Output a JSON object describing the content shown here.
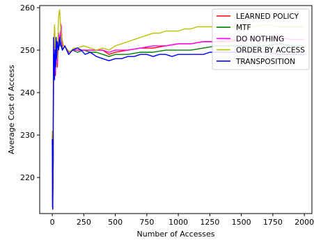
{
  "chart_data": {
    "type": "line",
    "title": "",
    "xlabel": "Number of Accesses",
    "ylabel": "Average Cost of Access",
    "xlim": [
      -100,
      2060
    ],
    "ylim": [
      211.5,
      260.5
    ],
    "x_ticks": [
      0,
      250,
      500,
      750,
      1000,
      1250,
      1500,
      1750,
      2000
    ],
    "y_ticks": [
      220,
      230,
      240,
      250,
      260
    ],
    "grid": false,
    "legend_position": "top-right",
    "series": [
      {
        "name": "LEARNED POLICY",
        "color": "#ff0000",
        "points": [
          [
            0,
            230
          ],
          [
            3,
            213
          ],
          [
            8,
            225
          ],
          [
            12,
            248
          ],
          [
            18,
            255
          ],
          [
            25,
            244
          ],
          [
            32,
            252
          ],
          [
            40,
            246
          ],
          [
            50,
            254
          ],
          [
            60,
            252
          ],
          [
            70,
            256
          ],
          [
            80,
            250
          ],
          [
            100,
            251
          ],
          [
            130,
            249
          ],
          [
            160,
            250
          ],
          [
            200,
            250
          ],
          [
            250,
            250
          ],
          [
            300,
            250
          ],
          [
            350,
            250
          ],
          [
            400,
            250
          ],
          [
            450,
            249
          ],
          [
            500,
            249.5
          ],
          [
            600,
            250
          ],
          [
            700,
            250.5
          ],
          [
            800,
            250.5
          ],
          [
            900,
            251
          ],
          [
            1000,
            251.5
          ],
          [
            1100,
            251.5
          ],
          [
            1200,
            252
          ],
          [
            1300,
            252
          ],
          [
            1400,
            252
          ],
          [
            1500,
            252.5
          ],
          [
            1600,
            252.5
          ],
          [
            1700,
            252.5
          ],
          [
            1800,
            253
          ],
          [
            1900,
            252.5
          ],
          [
            2000,
            252.5
          ]
        ]
      },
      {
        "name": "MTF",
        "color": "#008000",
        "points": [
          [
            0,
            230
          ],
          [
            3,
            214
          ],
          [
            8,
            224
          ],
          [
            12,
            249
          ],
          [
            18,
            254
          ],
          [
            25,
            245
          ],
          [
            32,
            251
          ],
          [
            40,
            247
          ],
          [
            50,
            253
          ],
          [
            60,
            251
          ],
          [
            70,
            255
          ],
          [
            80,
            250
          ],
          [
            100,
            251
          ],
          [
            130,
            249
          ],
          [
            160,
            250
          ],
          [
            200,
            249.5
          ],
          [
            250,
            250
          ],
          [
            300,
            249.5
          ],
          [
            350,
            249.5
          ],
          [
            400,
            249
          ],
          [
            450,
            248.5
          ],
          [
            500,
            249
          ],
          [
            600,
            249
          ],
          [
            700,
            249.5
          ],
          [
            800,
            249.5
          ],
          [
            900,
            250
          ],
          [
            1000,
            250
          ],
          [
            1100,
            250
          ],
          [
            1200,
            250.5
          ],
          [
            1300,
            251
          ],
          [
            1400,
            251
          ],
          [
            1500,
            251
          ],
          [
            1600,
            251
          ],
          [
            1700,
            251
          ],
          [
            1800,
            251.5
          ],
          [
            1900,
            251
          ],
          [
            2000,
            251
          ]
        ]
      },
      {
        "name": "DO NOTHING",
        "color": "#ff00ff",
        "points": [
          [
            0,
            230
          ],
          [
            3,
            213
          ],
          [
            8,
            226
          ],
          [
            12,
            249
          ],
          [
            18,
            255
          ],
          [
            25,
            245
          ],
          [
            32,
            252
          ],
          [
            40,
            247
          ],
          [
            50,
            254
          ],
          [
            60,
            252
          ],
          [
            70,
            256
          ],
          [
            80,
            251
          ],
          [
            100,
            251
          ],
          [
            130,
            249.5
          ],
          [
            160,
            250
          ],
          [
            200,
            250
          ],
          [
            250,
            250
          ],
          [
            300,
            250
          ],
          [
            350,
            250
          ],
          [
            400,
            250
          ],
          [
            450,
            249.5
          ],
          [
            500,
            250
          ],
          [
            600,
            250
          ],
          [
            700,
            250.5
          ],
          [
            800,
            251
          ],
          [
            900,
            251
          ],
          [
            1000,
            251.5
          ],
          [
            1100,
            251.5
          ],
          [
            1200,
            252
          ],
          [
            1300,
            252
          ],
          [
            1400,
            252.5
          ],
          [
            1500,
            252.5
          ],
          [
            1600,
            252.5
          ],
          [
            1700,
            252.5
          ],
          [
            1800,
            253
          ],
          [
            1900,
            252.5
          ],
          [
            2000,
            252.5
          ]
        ]
      },
      {
        "name": "ORDER BY ACCESS",
        "color": "#bfbf00",
        "points": [
          [
            0,
            231
          ],
          [
            3,
            214
          ],
          [
            8,
            227
          ],
          [
            12,
            250
          ],
          [
            18,
            256
          ],
          [
            25,
            246
          ],
          [
            32,
            253
          ],
          [
            40,
            248
          ],
          [
            50,
            258
          ],
          [
            58,
            259.5
          ],
          [
            65,
            256
          ],
          [
            75,
            253
          ],
          [
            90,
            251
          ],
          [
            110,
            250.5
          ],
          [
            140,
            249.5
          ],
          [
            170,
            250.5
          ],
          [
            200,
            250.5
          ],
          [
            250,
            251
          ],
          [
            300,
            250.5
          ],
          [
            350,
            250
          ],
          [
            400,
            250.5
          ],
          [
            450,
            250
          ],
          [
            500,
            251
          ],
          [
            550,
            251.5
          ],
          [
            600,
            252
          ],
          [
            650,
            252.5
          ],
          [
            700,
            253
          ],
          [
            750,
            253.5
          ],
          [
            800,
            254
          ],
          [
            850,
            254
          ],
          [
            900,
            254.5
          ],
          [
            950,
            254.5
          ],
          [
            1000,
            254.5
          ],
          [
            1050,
            255
          ],
          [
            1100,
            255
          ],
          [
            1150,
            255.5
          ],
          [
            1200,
            255.5
          ],
          [
            1250,
            255.5
          ],
          [
            1300,
            255.5
          ],
          [
            1400,
            255.5
          ],
          [
            1500,
            255.5
          ],
          [
            1600,
            255.5
          ],
          [
            1700,
            256
          ],
          [
            1800,
            255.5
          ],
          [
            1900,
            255.5
          ],
          [
            2000,
            255.5
          ]
        ]
      },
      {
        "name": "TRANSPOSITION",
        "color": "#0000ff",
        "points": [
          [
            0,
            229
          ],
          [
            2,
            213
          ],
          [
            4,
            212.5
          ],
          [
            6,
            226
          ],
          [
            8,
            240
          ],
          [
            10,
            253
          ],
          [
            12,
            244
          ],
          [
            15,
            249
          ],
          [
            18,
            243
          ],
          [
            22,
            250
          ],
          [
            26,
            246
          ],
          [
            30,
            253
          ],
          [
            35,
            248
          ],
          [
            40,
            252
          ],
          [
            50,
            250
          ],
          [
            60,
            253
          ],
          [
            70,
            251
          ],
          [
            80,
            250
          ],
          [
            100,
            251
          ],
          [
            130,
            249
          ],
          [
            160,
            250
          ],
          [
            200,
            250.5
          ],
          [
            230,
            250
          ],
          [
            260,
            249
          ],
          [
            300,
            249.5
          ],
          [
            350,
            248.5
          ],
          [
            400,
            248
          ],
          [
            450,
            247.5
          ],
          [
            500,
            248
          ],
          [
            550,
            248
          ],
          [
            600,
            248.5
          ],
          [
            650,
            248.5
          ],
          [
            700,
            249
          ],
          [
            750,
            249
          ],
          [
            800,
            248.5
          ],
          [
            850,
            249
          ],
          [
            900,
            249
          ],
          [
            950,
            248.5
          ],
          [
            1000,
            249
          ],
          [
            1050,
            249
          ],
          [
            1100,
            249
          ],
          [
            1150,
            249
          ],
          [
            1200,
            249
          ],
          [
            1250,
            249.5
          ],
          [
            1300,
            249.5
          ],
          [
            1400,
            249.5
          ],
          [
            1500,
            249.5
          ],
          [
            1600,
            249.5
          ],
          [
            1700,
            249.5
          ],
          [
            1800,
            249
          ],
          [
            1900,
            249
          ],
          [
            2000,
            249
          ]
        ]
      }
    ]
  }
}
